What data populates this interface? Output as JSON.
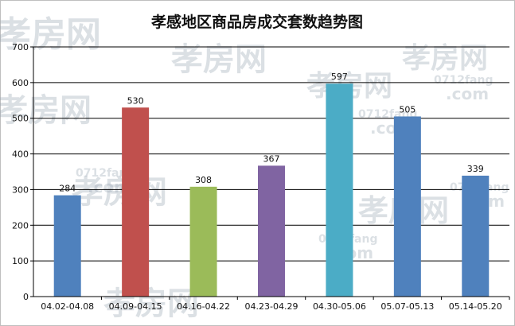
{
  "chart_data": {
    "type": "bar",
    "title": "孝感地区商品房成交套数趋势图",
    "categories": [
      "04.02-04.08",
      "04.09-04.15",
      "04.16-04.22",
      "04.23-04.29",
      "04.30-05.06",
      "05.07-05.13",
      "05.14-05.20"
    ],
    "values": [
      284,
      530,
      308,
      367,
      597,
      505,
      339
    ],
    "bar_colors": [
      "#4f81bd",
      "#c0504d",
      "#9bbb59",
      "#8064a2",
      "#4bacc6",
      "#4f81bd",
      "#4f81bd"
    ],
    "yticks": [
      "0",
      "100",
      "200",
      "300",
      "400",
      "500",
      "600",
      "700"
    ],
    "ylim": [
      0,
      700
    ],
    "xlabel": "",
    "ylabel": "",
    "grid": true,
    "legend": "none"
  },
  "watermark": {
    "brand": "孝房网",
    "domain": "0712fang",
    "dotcom": ".com"
  }
}
